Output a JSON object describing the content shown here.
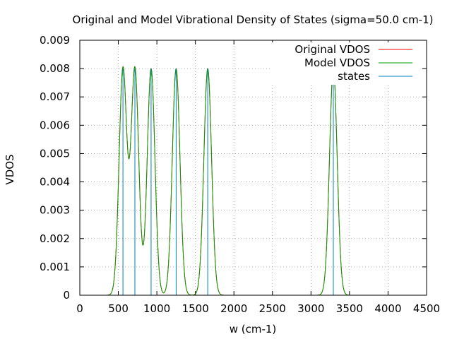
{
  "chart_data": {
    "type": "line",
    "title": "Original and Model Vibrational Density of States (sigma=50.0 cm-1)",
    "xlabel": "w (cm-1)",
    "ylabel": "VDOS",
    "xlim": [
      0,
      4500
    ],
    "ylim": [
      0,
      0.009
    ],
    "xticks": [
      0,
      500,
      1000,
      1500,
      2000,
      2500,
      3000,
      3500,
      4000,
      4500
    ],
    "yticks": [
      0,
      0.001,
      0.002,
      0.003,
      0.004,
      0.005,
      0.006,
      0.007,
      0.008,
      0.009
    ],
    "xtick_labels": [
      "0",
      "500",
      "1000",
      "1500",
      "2000",
      "2500",
      "3000",
      "3500",
      "4000",
      "4500"
    ],
    "ytick_labels": [
      "0",
      "0.001",
      "0.002",
      "0.003",
      "0.004",
      "0.005",
      "0.006",
      "0.007",
      "0.008",
      "0.009"
    ],
    "grid": true,
    "legend_position": "top-right",
    "sigma": 50.0,
    "peak_height": 0.008,
    "states": [
      560,
      715,
      925,
      1250,
      1660,
      3290
    ],
    "series": [
      {
        "name": "Original VDOS",
        "color": "#ff0000",
        "style": "gaussian-sum"
      },
      {
        "name": "Model VDOS",
        "color": "#00a000",
        "style": "gaussian-sum"
      },
      {
        "name": "states",
        "color": "#0080c0",
        "style": "impulses"
      }
    ]
  }
}
